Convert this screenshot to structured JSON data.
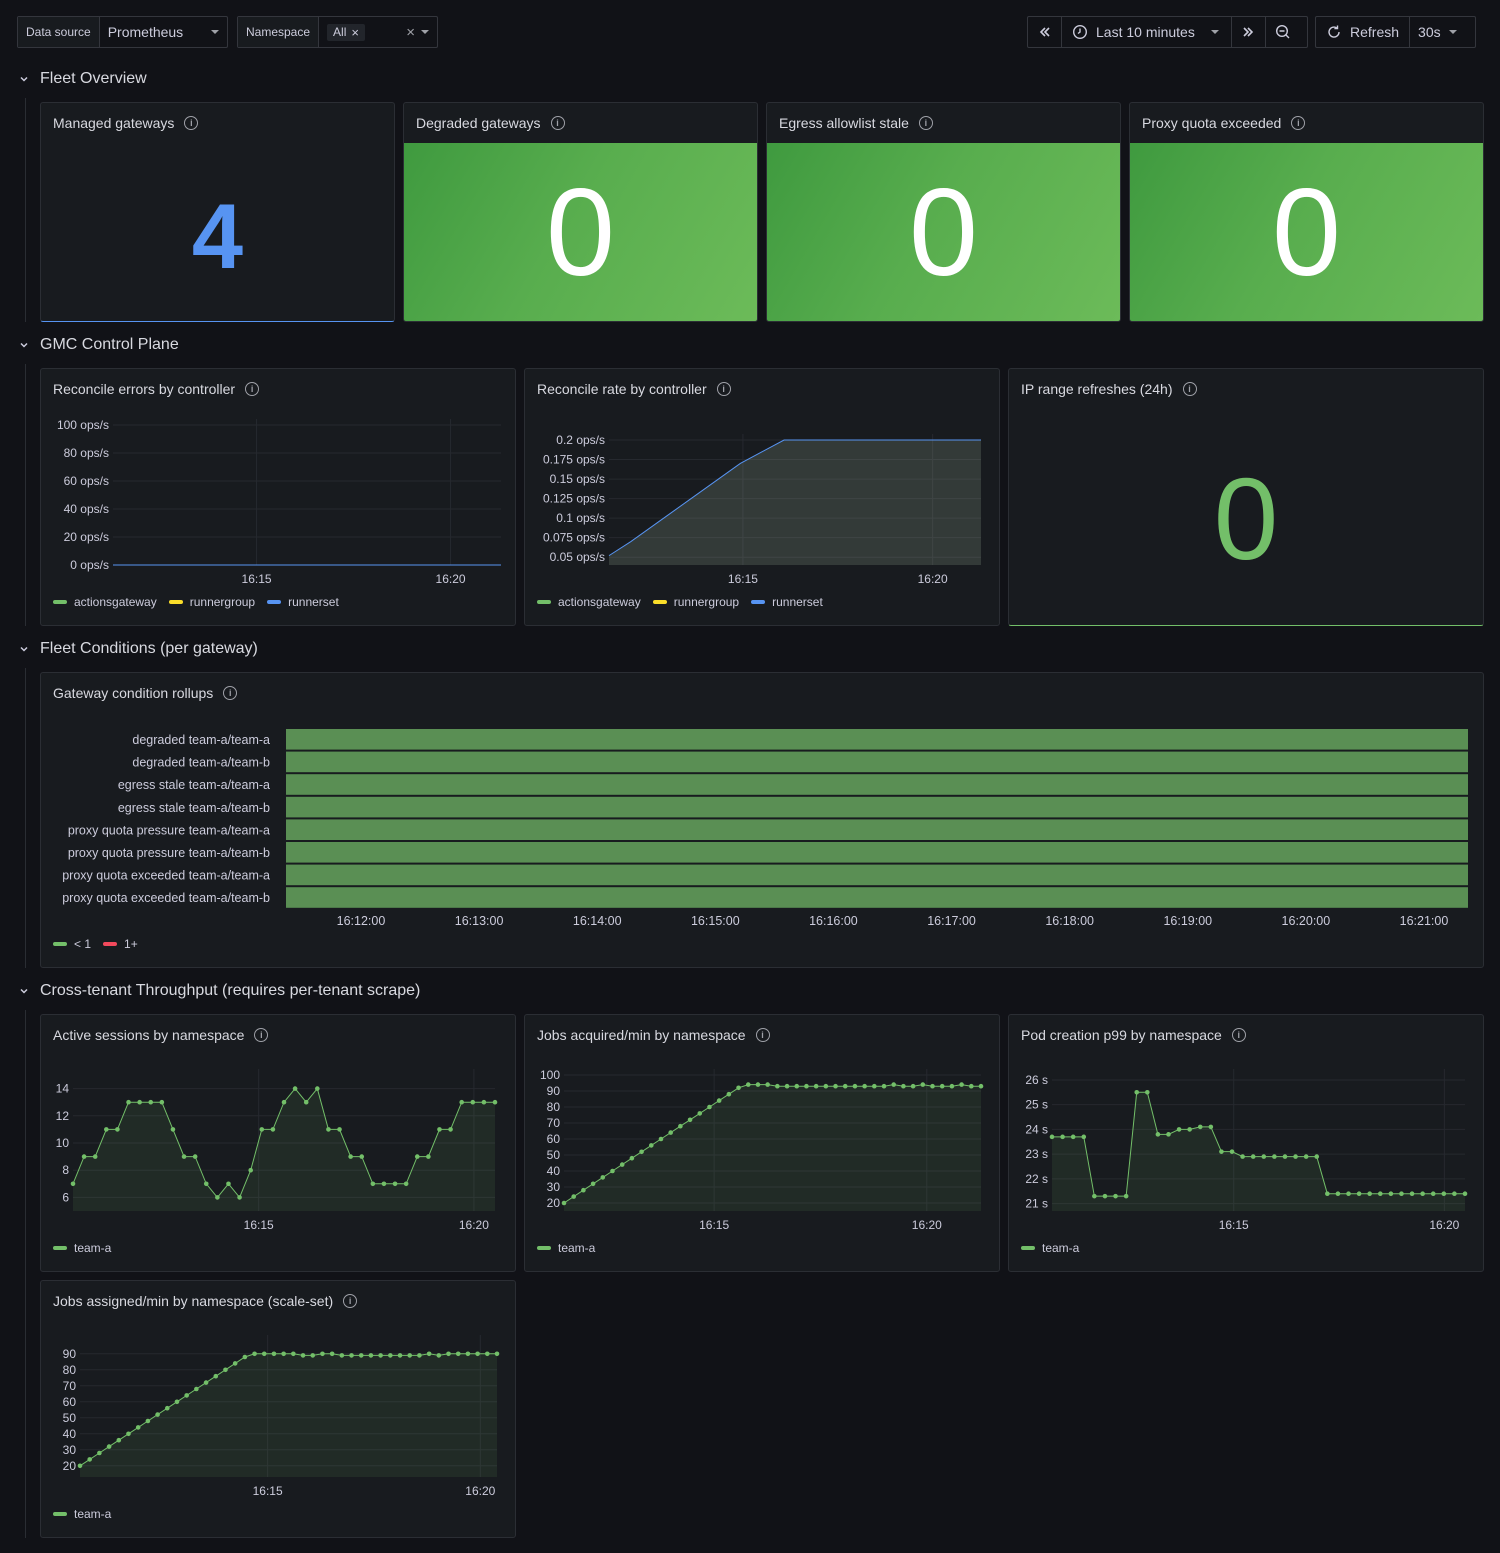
{
  "toolbar": {
    "datasource_label": "Data source",
    "datasource_value": "Prometheus",
    "namespace_label": "Namespace",
    "namespace_chip": "All",
    "time_range": "Last 10 minutes",
    "refresh_label": "Refresh",
    "refresh_interval": "30s"
  },
  "rows": {
    "fleet_overview": "Fleet Overview",
    "gmc_control_plane": "GMC Control Plane",
    "fleet_conditions": "Fleet Conditions (per gateway)",
    "cross_tenant": "Cross-tenant Throughput (requires per-tenant scrape)"
  },
  "stats": {
    "managed": {
      "title": "Managed gateways",
      "value": "4",
      "color": "#5794f2"
    },
    "degraded": {
      "title": "Degraded gateways",
      "value": "0"
    },
    "egress": {
      "title": "Egress allowlist stale",
      "value": "0"
    },
    "proxy": {
      "title": "Proxy quota exceeded",
      "value": "0"
    },
    "ip_refresh": {
      "title": "IP range refreshes (24h)",
      "value": "0",
      "color": "#73bf69"
    }
  },
  "colors": {
    "green": "#73bf69",
    "yellow": "#fade2a",
    "blue": "#5794f2",
    "red": "#f2495c"
  },
  "chart_data": [
    {
      "id": "reconcile_errors",
      "type": "line",
      "title": "Reconcile errors by controller",
      "yticks": [
        "0 ops/s",
        "20 ops/s",
        "40 ops/s",
        "60 ops/s",
        "80 ops/s",
        "100 ops/s"
      ],
      "ylim": [
        0,
        100
      ],
      "xticks": [
        "16:15",
        "16:20"
      ],
      "series": [
        {
          "name": "actionsgateway",
          "color": "#73bf69"
        },
        {
          "name": "runnergroup",
          "color": "#fade2a"
        },
        {
          "name": "runnerset",
          "color": "#5794f2",
          "values": [
            0,
            0
          ]
        }
      ]
    },
    {
      "id": "reconcile_rate",
      "type": "area",
      "title": "Reconcile rate by controller",
      "yticks": [
        "0.05 ops/s",
        "0.075 ops/s",
        "0.1 ops/s",
        "0.125 ops/s",
        "0.15 ops/s",
        "0.175 ops/s",
        "0.2 ops/s"
      ],
      "ylim": [
        0.04,
        0.2
      ],
      "xticks": [
        "16:15",
        "16:20"
      ],
      "series": [
        {
          "name": "actionsgateway",
          "color": "#73bf69"
        },
        {
          "name": "runnergroup",
          "color": "#fade2a"
        },
        {
          "name": "runnerset",
          "color": "#5794f2",
          "values": [
            0.052,
            0.07,
            0.09,
            0.11,
            0.13,
            0.15,
            0.17,
            0.185,
            0.2,
            0.2,
            0.2,
            0.2,
            0.2,
            0.2,
            0.2,
            0.2,
            0.2,
            0.2
          ]
        }
      ]
    },
    {
      "id": "condition_rollups",
      "type": "heatmap",
      "title": "Gateway condition rollups",
      "rows": [
        "degraded team-a/team-a",
        "degraded team-a/team-b",
        "egress stale team-a/team-a",
        "egress stale team-a/team-b",
        "proxy quota pressure team-a/team-a",
        "proxy quota pressure team-a/team-b",
        "proxy quota exceeded team-a/team-a",
        "proxy quota exceeded team-a/team-b"
      ],
      "xticks": [
        "16:12:00",
        "16:13:00",
        "16:14:00",
        "16:15:00",
        "16:16:00",
        "16:17:00",
        "16:18:00",
        "16:19:00",
        "16:20:00",
        "16:21:00"
      ],
      "legend": [
        {
          "name": "< 1",
          "color": "#73bf69"
        },
        {
          "name": "1+",
          "color": "#f2495c"
        }
      ],
      "values": [
        0,
        0,
        0,
        0,
        0,
        0,
        0,
        0
      ]
    },
    {
      "id": "active_sessions",
      "type": "line",
      "title": "Active sessions by namespace",
      "yticks": [
        "6",
        "8",
        "10",
        "12",
        "14"
      ],
      "ylim": [
        5,
        15
      ],
      "xticks": [
        "16:15",
        "16:20"
      ],
      "series": [
        {
          "name": "team-a",
          "color": "#73bf69",
          "values": [
            7,
            9,
            9,
            11,
            11,
            13,
            13,
            13,
            13,
            11,
            9,
            9,
            7,
            6,
            7,
            6,
            8,
            11,
            11,
            13,
            14,
            13,
            14,
            11,
            11,
            9,
            9,
            7,
            7,
            7,
            7,
            9,
            9,
            11,
            11,
            13,
            13,
            13,
            13
          ]
        }
      ]
    },
    {
      "id": "jobs_acquired",
      "type": "line",
      "title": "Jobs acquired/min by namespace",
      "yticks": [
        "20",
        "30",
        "40",
        "50",
        "60",
        "70",
        "80",
        "90",
        "100"
      ],
      "ylim": [
        15,
        100
      ],
      "xticks": [
        "16:15",
        "16:20"
      ],
      "series": [
        {
          "name": "team-a",
          "color": "#73bf69",
          "values": [
            20,
            24,
            28,
            32,
            36,
            40,
            44,
            48,
            52,
            56,
            60,
            64,
            68,
            72,
            76,
            80,
            84,
            88,
            92,
            94,
            94,
            94,
            93,
            93,
            93,
            93,
            93,
            93,
            93,
            93,
            93,
            93,
            93,
            93,
            94,
            93,
            93,
            94,
            93,
            93,
            93,
            94,
            93,
            93
          ]
        }
      ]
    },
    {
      "id": "pod_creation_p99",
      "type": "line",
      "title": "Pod creation p99 by namespace",
      "yticks": [
        "21 s",
        "22 s",
        "23 s",
        "24 s",
        "25 s",
        "26 s"
      ],
      "ylim": [
        20.7,
        26.2
      ],
      "xticks": [
        "16:15",
        "16:20"
      ],
      "series": [
        {
          "name": "team-a",
          "color": "#73bf69",
          "values": [
            23.7,
            23.7,
            23.7,
            23.7,
            21.3,
            21.3,
            21.3,
            21.3,
            25.5,
            25.5,
            23.8,
            23.8,
            24,
            24,
            24.1,
            24.1,
            23.1,
            23.1,
            22.9,
            22.9,
            22.9,
            22.9,
            22.9,
            22.9,
            22.9,
            22.9,
            21.4,
            21.4,
            21.4,
            21.4,
            21.4,
            21.4,
            21.4,
            21.4,
            21.4,
            21.4,
            21.4,
            21.4,
            21.4,
            21.4
          ]
        }
      ]
    },
    {
      "id": "jobs_assigned",
      "type": "line",
      "title": "Jobs assigned/min by namespace (scale-set)",
      "yticks": [
        "20",
        "30",
        "40",
        "50",
        "60",
        "70",
        "80",
        "90"
      ],
      "ylim": [
        13,
        98
      ],
      "xticks": [
        "16:15",
        "16:20"
      ],
      "series": [
        {
          "name": "team-a",
          "color": "#73bf69",
          "values": [
            20,
            24,
            28,
            32,
            36,
            40,
            44,
            48,
            52,
            56,
            60,
            64,
            68,
            72,
            76,
            80,
            84,
            88,
            90,
            90,
            90,
            90,
            90,
            89,
            89,
            90,
            90,
            89,
            89,
            89,
            89,
            89,
            89,
            89,
            89,
            89,
            90,
            89,
            90,
            90,
            90,
            90,
            90,
            90
          ]
        }
      ]
    }
  ]
}
